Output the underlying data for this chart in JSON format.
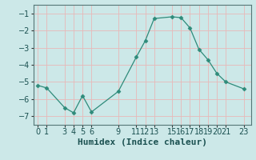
{
  "x": [
    0,
    1,
    3,
    4,
    5,
    6,
    9,
    11,
    12,
    13,
    15,
    16,
    17,
    18,
    19,
    20,
    21,
    23
  ],
  "y": [
    -5.2,
    -5.35,
    -6.5,
    -6.8,
    -5.8,
    -6.75,
    -5.55,
    -3.55,
    -2.6,
    -1.3,
    -1.2,
    -1.25,
    -1.85,
    -3.1,
    -3.7,
    -4.5,
    -5.0,
    -5.4
  ],
  "xlabel": "Humidex (Indice chaleur)",
  "ylabel": "",
  "xlim": [
    -0.5,
    23.8
  ],
  "ylim": [
    -7.5,
    -0.5
  ],
  "xticks": [
    0,
    1,
    3,
    4,
    5,
    6,
    9,
    11,
    12,
    13,
    15,
    16,
    17,
    18,
    19,
    20,
    21,
    23
  ],
  "yticks": [
    -7,
    -6,
    -5,
    -4,
    -3,
    -2,
    -1
  ],
  "line_color": "#2e8b7a",
  "marker": "D",
  "marker_size": 2.5,
  "bg_color": "#cce8e8",
  "grid_color": "#e8b8b8",
  "xlabel_fontsize": 8,
  "tick_fontsize": 7
}
